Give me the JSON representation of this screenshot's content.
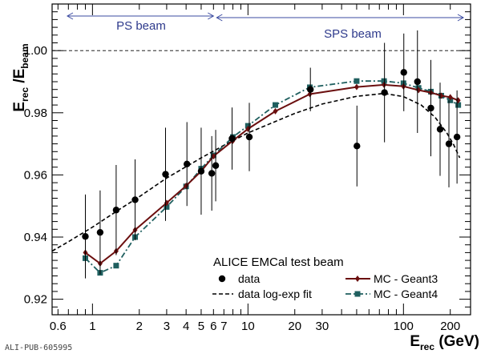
{
  "chart_data": {
    "type": "scatter",
    "title": "",
    "xlabel": {
      "main": "E",
      "sub": "rec",
      "unit": " (GeV)"
    },
    "ylabel": {
      "num": "E",
      "num_sub": "rec",
      "slash": " /",
      "den": "E",
      "den_sub": "beam"
    },
    "xscale": "log",
    "xlim": [
      0.55,
      270
    ],
    "ylim": [
      0.915,
      1.015
    ],
    "x_tick_labels": [
      {
        "x": 0.6,
        "label": "0.6"
      },
      {
        "x": 1,
        "label": "1"
      },
      {
        "x": 2,
        "label": "2"
      },
      {
        "x": 3,
        "label": "3"
      },
      {
        "x": 4,
        "label": "4"
      },
      {
        "x": 5,
        "label": "5"
      },
      {
        "x": 6,
        "label": "6"
      },
      {
        "x": 7,
        "label": "7"
      },
      {
        "x": 10,
        "label": "10"
      },
      {
        "x": 20,
        "label": "20"
      },
      {
        "x": 30,
        "label": "30"
      },
      {
        "x": 100,
        "label": "100"
      },
      {
        "x": 200,
        "label": "200"
      }
    ],
    "y_tick_labels": [
      {
        "y": 0.92,
        "label": "0.92"
      },
      {
        "y": 0.94,
        "label": "0.94"
      },
      {
        "y": 0.96,
        "label": "0.96"
      },
      {
        "y": 0.98,
        "label": "0.98"
      },
      {
        "y": 1.0,
        "label": "1.00"
      }
    ],
    "reference_line": {
      "y": 1.0,
      "style": "dashed"
    },
    "annotations": {
      "ps_beam": {
        "label": "PS beam",
        "x_range": [
          0.6,
          6
        ]
      },
      "sps_beam": {
        "label": "SPS beam",
        "x_range": [
          6,
          230
        ]
      }
    },
    "legend": {
      "header": "ALICE EMCal test beam",
      "entries": [
        {
          "key": "data",
          "label": "data"
        },
        {
          "key": "mc_g3",
          "label": "MC - Geant3"
        },
        {
          "key": "fit",
          "label": "data log-exp fit"
        },
        {
          "key": "mc_g4",
          "label": "MC - Geant4"
        }
      ],
      "placement": "bottom-right"
    },
    "series": [
      {
        "name": "data",
        "style": "points-with-errors",
        "color": "#000000",
        "points": [
          {
            "x": 0.9,
            "y": 0.9402,
            "err": 0.0135
          },
          {
            "x": 1.12,
            "y": 0.9415,
            "err": 0.0135
          },
          {
            "x": 1.42,
            "y": 0.9487,
            "err": 0.0145
          },
          {
            "x": 1.88,
            "y": 0.952,
            "err": 0.013
          },
          {
            "x": 2.95,
            "y": 0.9602,
            "err": 0.015
          },
          {
            "x": 4.05,
            "y": 0.9635,
            "err": 0.0135
          },
          {
            "x": 5.0,
            "y": 0.9612,
            "err": 0.014
          },
          {
            "x": 5.85,
            "y": 0.9605,
            "err": 0.012
          },
          {
            "x": 6.2,
            "y": 0.963,
            "err": 0.0115
          },
          {
            "x": 7.9,
            "y": 0.9717,
            "err": 0.01
          },
          {
            "x": 10.2,
            "y": 0.9722,
            "err": 0.011
          },
          {
            "x": 25.2,
            "y": 0.9875,
            "err": 0.007
          },
          {
            "x": 50.2,
            "y": 0.9693,
            "err": 0.013
          },
          {
            "x": 75.5,
            "y": 0.9865,
            "err": 0.016
          },
          {
            "x": 100.5,
            "y": 0.993,
            "err": 0.0125
          },
          {
            "x": 123,
            "y": 0.99,
            "err": 0.0165
          },
          {
            "x": 150,
            "y": 0.9815,
            "err": 0.0155
          },
          {
            "x": 172,
            "y": 0.9747,
            "err": 0.015
          },
          {
            "x": 196,
            "y": 0.97,
            "err": 0.014
          },
          {
            "x": 221,
            "y": 0.9722,
            "err": 0.015
          }
        ]
      },
      {
        "name": "MC - Geant3",
        "style": "solid-line-diamonds",
        "color": "#6b0f0f",
        "points": [
          {
            "x": 0.9,
            "y": 0.935
          },
          {
            "x": 1.12,
            "y": 0.9315
          },
          {
            "x": 1.42,
            "y": 0.9355
          },
          {
            "x": 1.88,
            "y": 0.9423
          },
          {
            "x": 3.0,
            "y": 0.951
          },
          {
            "x": 4.0,
            "y": 0.9565
          },
          {
            "x": 5.0,
            "y": 0.9612
          },
          {
            "x": 6.0,
            "y": 0.966
          },
          {
            "x": 8.0,
            "y": 0.971
          },
          {
            "x": 10.0,
            "y": 0.9748
          },
          {
            "x": 15.0,
            "y": 0.9805
          },
          {
            "x": 25.0,
            "y": 0.986
          },
          {
            "x": 50.0,
            "y": 0.9883
          },
          {
            "x": 75.0,
            "y": 0.989
          },
          {
            "x": 100.0,
            "y": 0.9885
          },
          {
            "x": 125.0,
            "y": 0.9873
          },
          {
            "x": 150.0,
            "y": 0.9865
          },
          {
            "x": 175.0,
            "y": 0.9855
          },
          {
            "x": 200.0,
            "y": 0.985
          },
          {
            "x": 225.0,
            "y": 0.984
          }
        ]
      },
      {
        "name": "MC - Geant4",
        "style": "dashdot-line-squares",
        "color": "#1f5f5f",
        "points": [
          {
            "x": 0.9,
            "y": 0.9332
          },
          {
            "x": 1.12,
            "y": 0.9285
          },
          {
            "x": 1.42,
            "y": 0.9308
          },
          {
            "x": 1.88,
            "y": 0.94
          },
          {
            "x": 3.0,
            "y": 0.9497
          },
          {
            "x": 4.0,
            "y": 0.9563
          },
          {
            "x": 5.0,
            "y": 0.962
          },
          {
            "x": 6.0,
            "y": 0.9663
          },
          {
            "x": 8.0,
            "y": 0.9722
          },
          {
            "x": 10.0,
            "y": 0.9758
          },
          {
            "x": 15.0,
            "y": 0.9825
          },
          {
            "x": 25.0,
            "y": 0.9882
          },
          {
            "x": 50.0,
            "y": 0.9902
          },
          {
            "x": 75.0,
            "y": 0.9902
          },
          {
            "x": 100.0,
            "y": 0.9895
          },
          {
            "x": 125.0,
            "y": 0.988
          },
          {
            "x": 150.0,
            "y": 0.9868
          },
          {
            "x": 175.0,
            "y": 0.9855
          },
          {
            "x": 200.0,
            "y": 0.984
          },
          {
            "x": 225.0,
            "y": 0.9825
          }
        ]
      },
      {
        "name": "data log-exp fit",
        "style": "dashed-line",
        "color": "#000000",
        "points": [
          {
            "x": 0.55,
            "y": 0.9355
          },
          {
            "x": 0.7,
            "y": 0.9385
          },
          {
            "x": 1.0,
            "y": 0.9432
          },
          {
            "x": 1.5,
            "y": 0.949
          },
          {
            "x": 2.0,
            "y": 0.953
          },
          {
            "x": 3.0,
            "y": 0.959
          },
          {
            "x": 5.0,
            "y": 0.9655
          },
          {
            "x": 7.0,
            "y": 0.9695
          },
          {
            "x": 10.0,
            "y": 0.9735
          },
          {
            "x": 15.0,
            "y": 0.9772
          },
          {
            "x": 20.0,
            "y": 0.9798
          },
          {
            "x": 30.0,
            "y": 0.9828
          },
          {
            "x": 50.0,
            "y": 0.9853
          },
          {
            "x": 75.0,
            "y": 0.9862
          },
          {
            "x": 100.0,
            "y": 0.9852
          },
          {
            "x": 130.0,
            "y": 0.9825
          },
          {
            "x": 160.0,
            "y": 0.9785
          },
          {
            "x": 190.0,
            "y": 0.9735
          },
          {
            "x": 210.0,
            "y": 0.9698
          },
          {
            "x": 230.0,
            "y": 0.9655
          }
        ]
      }
    ],
    "footer": "ALI-PUB-605995"
  }
}
